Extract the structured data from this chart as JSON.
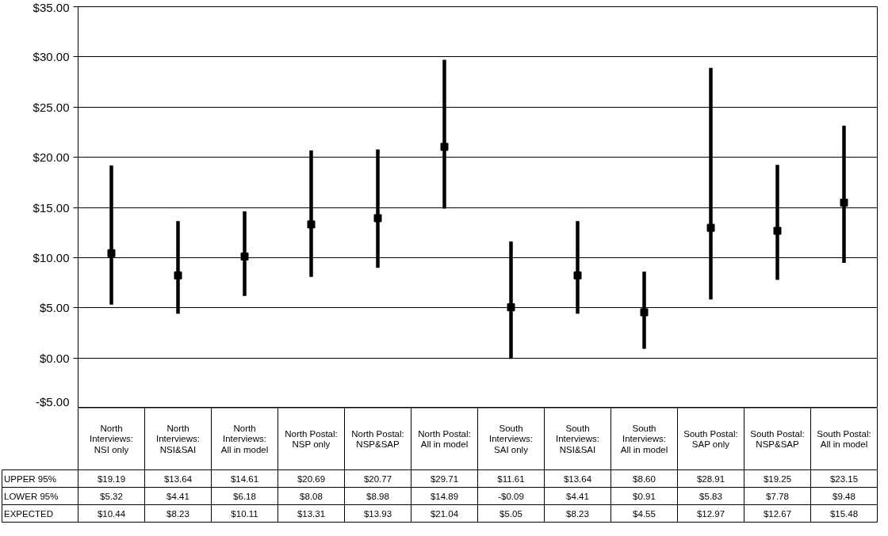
{
  "chart_data": {
    "type": "scatter",
    "categories": [
      "North Interviews: NSI only",
      "North Interviews: NSI&SAI",
      "North Interviews: All in model",
      "North Postal: NSP only",
      "North Postal: NSP&SAP",
      "North Postal: All in model",
      "South Interviews: SAI only",
      "South Interviews: NSI&SAI",
      "South Interviews: All in model",
      "South Postal: SAP only",
      "South Postal: NSP&SAP",
      "South Postal: All in model"
    ],
    "ylim": [
      -5,
      35
    ],
    "yticks": [
      {
        "value": -5,
        "label": "-$5.00"
      },
      {
        "value": 0,
        "label": "$0.00"
      },
      {
        "value": 5,
        "label": "$5.00"
      },
      {
        "value": 10,
        "label": "$10.00"
      },
      {
        "value": 15,
        "label": "$15.00"
      },
      {
        "value": 20,
        "label": "$20.00"
      },
      {
        "value": 25,
        "label": "$25.00"
      },
      {
        "value": 30,
        "label": "$30.00"
      },
      {
        "value": 35,
        "label": "$35.00"
      }
    ],
    "grid": "y",
    "tick_labels": "y",
    "marker": "square",
    "series": [
      {
        "name": "EXPECTED",
        "color": "#000000",
        "values": [
          10.44,
          8.23,
          10.11,
          13.31,
          13.93,
          21.04,
          5.05,
          8.23,
          4.55,
          12.97,
          12.67,
          15.48
        ],
        "errors": [
          [
            5.32,
            19.19
          ],
          [
            4.41,
            13.64
          ],
          [
            6.18,
            14.61
          ],
          [
            8.08,
            20.69
          ],
          [
            8.98,
            20.77
          ],
          [
            14.89,
            29.71
          ],
          [
            -0.09,
            11.61
          ],
          [
            4.41,
            13.64
          ],
          [
            0.91,
            8.6
          ],
          [
            5.83,
            28.91
          ],
          [
            7.78,
            19.25
          ],
          [
            9.48,
            23.15
          ]
        ],
        "value_labels": [
          "$10.44",
          "$8.23",
          "$10.11",
          "$13.31",
          "$13.93",
          "$21.04",
          "$5.05",
          "$8.23",
          "$4.55",
          "$12.97",
          "$12.67",
          "$15.48"
        ]
      }
    ],
    "annotations": [
      "UPPER 95%",
      "$19.19",
      "$13.64",
      "$14.61",
      "$20.69",
      "$20.77",
      "$29.71",
      "$11.61",
      "$13.64",
      "$8.60",
      "$28.91",
      "$19.25",
      "$23.15",
      "LOWER 95%",
      "$5.32",
      "$4.41",
      "$6.18",
      "$8.08",
      "$8.98",
      "$14.89",
      "-$0.09",
      "$4.41",
      "$0.91",
      "$5.83",
      "$7.78",
      "$9.48"
    ]
  }
}
